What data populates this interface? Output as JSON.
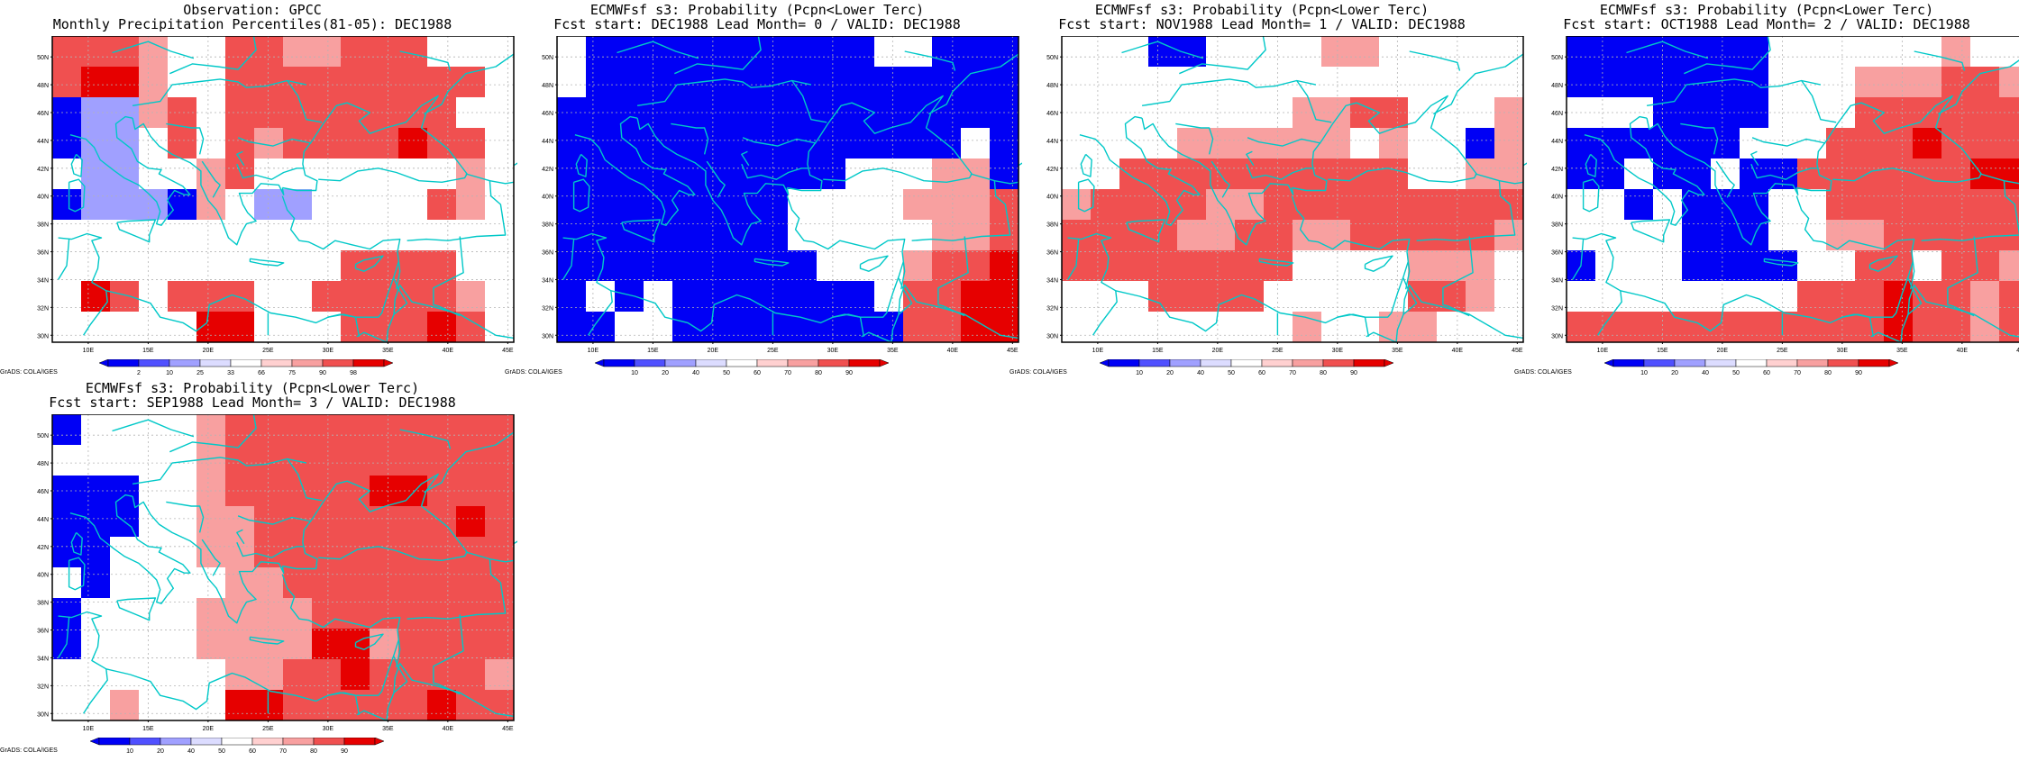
{
  "panels": [
    {
      "title1": "Observation: GPCC",
      "title2": "Monthly Precipitation Percentiles(81-05): DEC1988",
      "kind": "obs",
      "grid": [
        "RRRPWWRRPPRRRWWW",
        "RDDPWWRRRRRRRRRW",
        "BLLPRWRRRRRRRRWW",
        "BLLWRWRPRRRRDRRW",
        "WLLWWPRWWWWWWWPW",
        "BLLLBPWLLWWWWRPW",
        "WWWWWWWWWWWWWWWW",
        "WWWWWWWWWWRRRRWW",
        "WDRWRRRWWRRRRRPW",
        "WWWWWDDWWWRRRDRW"
      ]
    },
    {
      "title1": "ECMWFsf s3: Probability (Pcpn<Lower Terc)",
      "title2": "Fcst start: DEC1988  Lead Month= 0 / VALID: DEC1988",
      "kind": "fcst",
      "grid": [
        "WBBBBBBBBBBWWBBB",
        "WBBBBBBBBBBBBBBB",
        "BBBBBBBBBBBBBBBB",
        "BBBBBBBBBBBBBBWB",
        "BBBBBBBBBBWWWPPB",
        "BBBBBBBBWWWWPPPR",
        "BBBBBBBBWWWWWPPR",
        "BBBBBBBBBWWWPRRD",
        "BWBWBBBBBBBWRRDD",
        "BBWWBBBBBBBBRRDD"
      ]
    },
    {
      "title1": "ECMWFsf s3: Probability (Pcpn<Lower Terc)",
      "title2": "Fcst start: NOV1988  Lead Month= 1 / VALID: DEC1988",
      "kind": "fcst",
      "grid": [
        "WWWBBWWWWPPWWWWW",
        "WWWWWWWWWWWWWWWW",
        "WWWWWWWWPPRRWWWP",
        "WWWWPPPPPPWPWWBP",
        "WWRRRRRRRRRRWWPP",
        "PRRRRPPRRRRRRRRR",
        "RRRRPPRRPPRRRRRP",
        "RRRRRRRRWWWWPPPW",
        "WWWRRRRWWWWWRRPW",
        "WWWWWWWWPWWPPWWW"
      ]
    },
    {
      "title1": "ECMWFsf s3: Probability (Pcpn<Lower Terc)",
      "title2": "Fcst start: OCT1988  Lead Month= 2 / VALID: DEC1988",
      "kind": "fcst",
      "grid": [
        "BBBBBBBWWWWWWPWW",
        "BBBBBBBWWWPPPRRP",
        "WWWBBBBWWWRRRRRR",
        "BBBBBBWWWRRRDRRR",
        "BBWBBWBBRRRRRRDD",
        "WWBWBBBWWRRRRRRR",
        "WWWWBBBWWPPRRRRR",
        "BWWWBBBBWWRRWRRP",
        "WWWWWWWWRRRDRRPR",
        "RRRRRRRRRRRDRRPR"
      ]
    },
    {
      "title1": "ECMWFsf s3: Probability (Pcpn<Lower Terc)",
      "title2": "Fcst start: SEP1988  Lead Month= 3 / VALID: DEC1988",
      "kind": "fcst",
      "grid": [
        "BWWWWPRRRRRRRRRR",
        "WWWWWPRRRRRRRRRR",
        "BBBWWPRRRRRDDRRR",
        "BBBWWPPRRRRRRRDR",
        "BBWWWPPRRRRRRRRR",
        "WBWWWWPPRRRRRRRR",
        "BWWWWPPPPRRRRRRR",
        "BWWWWPPPPDDPRRRR",
        "WWWWWWPPRRDRRRRP",
        "WWPWWWDDRRRRRDRR"
      ]
    }
  ],
  "map": {
    "xticks": [
      "10E",
      "15E",
      "20E",
      "25E",
      "30E",
      "35E",
      "40E",
      "45E"
    ],
    "yticks": [
      "50N",
      "48N",
      "46N",
      "44N",
      "42N",
      "40N",
      "38N",
      "36N",
      "34N",
      "32N",
      "30N"
    ],
    "lon_range": [
      7,
      45.5
    ],
    "lat_range": [
      29.5,
      51.5
    ]
  },
  "colorbars": {
    "obs": {
      "labels": [
        "2",
        "10",
        "25",
        "33",
        "66",
        "75",
        "90",
        "98"
      ]
    },
    "fcst": {
      "labels": [
        "10",
        "20",
        "40",
        "50",
        "60",
        "70",
        "80",
        "90"
      ]
    }
  },
  "credit": "GrADS: COLA/IGES",
  "colors": {
    "B": "#0000f5",
    "M": "#5a5aff",
    "L": "#a0a0ff",
    "W": "#ffffff",
    "P": "#f8a0a0",
    "R": "#f05050",
    "D": "#e60000",
    "coast": "#00c8c8",
    "grid": "#b4b4b4",
    "frame": "#000000"
  }
}
